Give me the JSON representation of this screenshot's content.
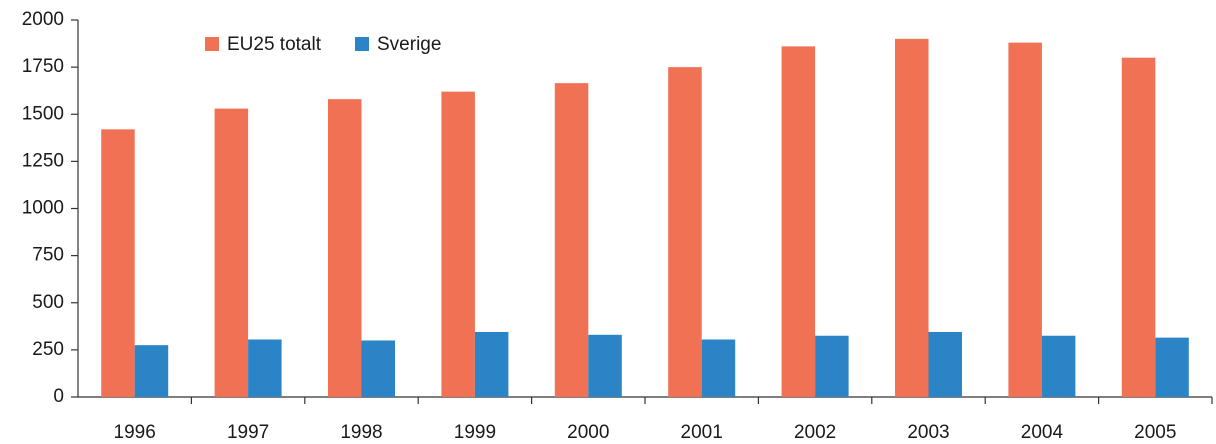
{
  "chart_data": {
    "type": "bar",
    "categories": [
      "1996",
      "1997",
      "1998",
      "1999",
      "2000",
      "2001",
      "2002",
      "2003",
      "2004",
      "2005"
    ],
    "series": [
      {
        "name": "EU25 totalt",
        "color": "#f07153",
        "values": [
          1420,
          1530,
          1580,
          1620,
          1665,
          1750,
          1860,
          1900,
          1880,
          1800
        ]
      },
      {
        "name": "Sverige",
        "color": "#2b84c6",
        "values": [
          275,
          305,
          300,
          345,
          330,
          305,
          325,
          345,
          325,
          315
        ]
      }
    ],
    "ylim": [
      0,
      2000
    ],
    "yticks": [
      0,
      250,
      500,
      750,
      1000,
      1250,
      1500,
      1750,
      2000
    ],
    "grid": false,
    "legend": "top-left"
  }
}
